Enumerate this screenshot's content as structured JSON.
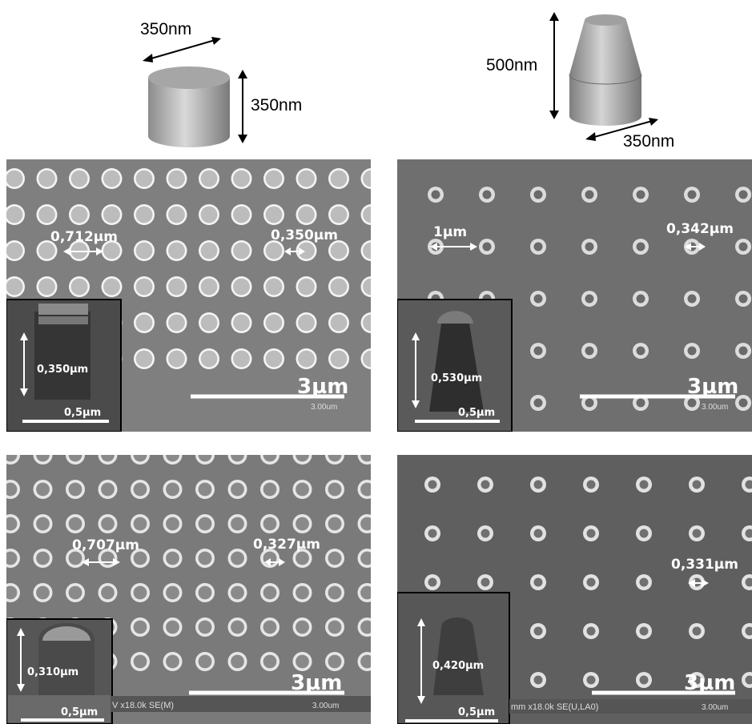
{
  "schematics": {
    "cylinder": {
      "diameter": "350nm",
      "height": "350nm"
    },
    "cone": {
      "height": "500nm",
      "diameter": "350nm"
    }
  },
  "panels": {
    "a": {
      "pitch_label": "0,712µm",
      "diameter_label": "0,350µm",
      "inset_height": "0,350µm",
      "inset_scale": "0,5µm",
      "scale_label": "3µm",
      "scale_small": "3.00um"
    },
    "b": {
      "pitch_label": "1µm",
      "diameter_label": "0,342µm",
      "inset_height": "0,530µm",
      "inset_scale": "0,5µm",
      "scale_label": "3µm",
      "scale_small": "3.00um"
    },
    "c": {
      "pitch_label": "0,707µm",
      "diameter_label": "0,327µm",
      "inset_height": "0,310µm",
      "inset_scale": "0,5µm",
      "scale_label": "3µm",
      "scale_small": "3.00um",
      "footer_text": "V x18.0k SE(M)"
    },
    "d": {
      "diameter_label": "0,331µm",
      "inset_height": "0,420µm",
      "inset_scale": "0,5µm",
      "scale_label": "3µm",
      "scale_small": "3.00um",
      "footer_text": "mm x18.0k SE(U,LA0)"
    }
  },
  "colors": {
    "sem_bg_a": "#7f7f7f",
    "sem_bg_b": "#6f6f6f",
    "pillar_edge": "#f2f2f2"
  }
}
